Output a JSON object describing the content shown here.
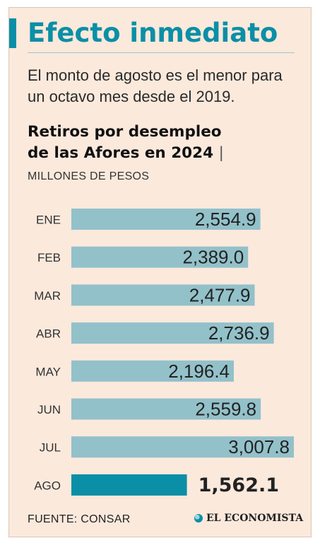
{
  "header": {
    "title": "Efecto inmediato",
    "subtitle": "El monto de agosto es el menor para un octavo mes desde el 2019."
  },
  "chart_data": {
    "type": "bar",
    "orientation": "horizontal",
    "title_line1": "Retiros por desempleo",
    "title_line2": "de las Afores en 2024",
    "title_separator": "|",
    "units": "MILLONES DE PESOS",
    "categories": [
      "ENE",
      "FEB",
      "MAR",
      "ABR",
      "MAY",
      "JUN",
      "JUL",
      "AGO"
    ],
    "values": [
      2554.9,
      2389.0,
      2477.9,
      2736.9,
      2196.4,
      2559.8,
      3007.8,
      1562.1
    ],
    "value_labels": [
      "2,554.9",
      "2,389.0",
      "2,477.9",
      "2,736.9",
      "2,196.4",
      "2,559.8",
      "3,007.8",
      "1,562.1"
    ],
    "highlight_index": 7,
    "xlim": [
      0,
      3007.8
    ],
    "grid": false,
    "legend": "none",
    "colors": {
      "bar": "#93c1ca",
      "highlight": "#0b8fa6",
      "label": "#222222"
    }
  },
  "footer": {
    "source": "FUENTE: CONSAR",
    "brand": "EL ECONOMISTA"
  },
  "colors": {
    "background": "#fbe9dc",
    "accent": "#0b8fa6"
  }
}
